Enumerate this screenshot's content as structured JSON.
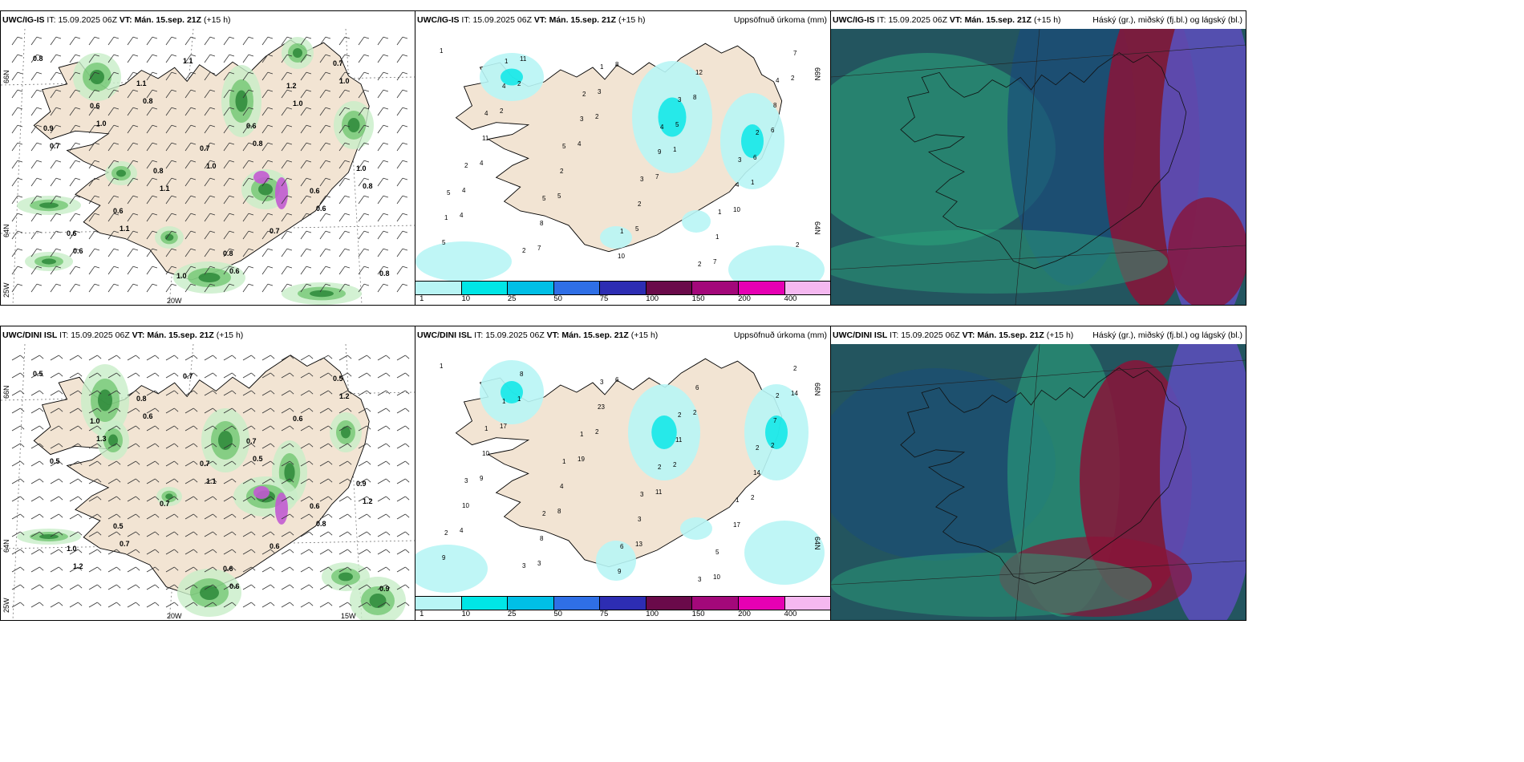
{
  "rows": [
    {
      "model": "UWC/IG-IS",
      "it_label": "IT:",
      "it_value": "15.09.2025 06Z",
      "vt_label": "VT:",
      "vt_value": "Mán. 15.sep. 21Z",
      "lead": "(+15 h)",
      "precip_title": "Uppsöfnuð úrkoma (mm)",
      "cloud_title": "Háský (gr.), miðský (fj.bl.) og lágský (bl.)",
      "lat_labels": [
        "66N",
        "64N"
      ],
      "lon_labels": [
        "25W",
        "20W"
      ],
      "panel1_values": [
        "0.8",
        "0.8",
        "0.8",
        "0.8",
        "1.1",
        "0.6",
        "1.0",
        "1.0",
        "1.0",
        "0.6",
        "0.6",
        "1.1",
        "1.0",
        "0.7",
        "1.1",
        "0.7",
        "0.8",
        "1.1",
        "0.6",
        "1.0",
        "0.6",
        "0.8",
        "0.7",
        "0.6",
        "0.7",
        "0.6",
        "0.6",
        "1.0",
        "1.2",
        "0.9",
        "0.8"
      ],
      "panel2_values": [
        "1",
        "2",
        "2",
        "1",
        "1",
        "4",
        "7",
        "8",
        "8",
        "6",
        "4",
        "5",
        "5",
        "7",
        "2",
        "2",
        "4",
        "7",
        "10",
        "5",
        "11",
        "3",
        "5",
        "6",
        "4",
        "8",
        "10",
        "12",
        "8",
        "11",
        "2",
        "2",
        "1",
        "7",
        "4",
        "3",
        "9",
        "4",
        "1",
        "2",
        "1",
        "3",
        "2",
        "2",
        "5",
        "1",
        "2",
        "4",
        "4",
        "5",
        "3",
        "1",
        "2",
        "1",
        "2",
        "4",
        "3",
        "5"
      ]
    },
    {
      "model": "UWC/DINI ISL",
      "it_label": "IT:",
      "it_value": "15.09.2025 06Z",
      "vt_label": "VT:",
      "vt_value": "Mán. 15.sep. 21Z",
      "lead": "(+15 h)",
      "precip_title": "Uppsöfnuð úrkoma (mm)",
      "cloud_title": "Háský (gr.), miðský (fj.bl.) og lágský (bl.)",
      "lat_labels": [
        "66N",
        "64N"
      ],
      "lon_labels": [
        "25W",
        "20W",
        "15W"
      ],
      "panel1_values": [
        "0.5",
        "0.6",
        "0.5",
        "1.2",
        "0.7",
        "0.6",
        "1.2",
        "1.3",
        "1.1",
        "0.8",
        "1.2",
        "0.7",
        "0.6",
        "0.5",
        "0.7",
        "0.6",
        "0.9",
        "0.8",
        "0.7",
        "0.9",
        "0.5",
        "0.6",
        "0.5",
        "1.0",
        "0.7",
        "0.6",
        "1.0"
      ],
      "panel2_values": [
        "1",
        "1",
        "2",
        "2",
        "2",
        "4",
        "3",
        "6",
        "2",
        "2",
        "9",
        "8",
        "13",
        "10",
        "14",
        "17",
        "19",
        "11",
        "17",
        "9",
        "8",
        "23",
        "11",
        "14",
        "10",
        "8",
        "9",
        "6",
        "7",
        "10",
        "4",
        "3",
        "5",
        "2",
        "1",
        "1",
        "2",
        "1",
        "2",
        "3",
        "3",
        "2",
        "2",
        "3",
        "2",
        "6",
        "3",
        "2",
        "1",
        "1",
        "3"
      ]
    }
  ],
  "colorbar": {
    "ticks": [
      "1",
      "10",
      "25",
      "50",
      "75",
      "100",
      "150",
      "200",
      "400"
    ],
    "colors": [
      "#b8f5f5",
      "#00e6e6",
      "#00bfe6",
      "#2f6fe6",
      "#2d2db3",
      "#6a0a4a",
      "#a3087a",
      "#e600b3",
      "#f5b8f0"
    ]
  },
  "colors": {
    "land": "#f2e4d3",
    "coast": "#000000",
    "precip_light": "#c8eec8",
    "precip_mid": "#66c266",
    "precip_dark": "#1a7a2a",
    "precip_purple": "#c25bd1",
    "cloud_high": "#5a4fb8",
    "cloud_mid_teal": "#2aa07a",
    "cloud_low_dark": "#23555f",
    "cloud_red": "#8a1438"
  }
}
